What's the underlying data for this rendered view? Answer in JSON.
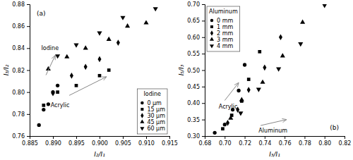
{
  "chart_data": [
    {
      "type": "scatter",
      "panel_label": "(a)",
      "x_label": "I₂/I₁",
      "y_label": "I₃/I₂",
      "xlim": [
        0.885,
        0.915
      ],
      "ylim": [
        0.76,
        0.88
      ],
      "xticks": [
        0.885,
        {
          "value": 0.89,
          "label": "0.890"
        },
        0.895,
        {
          "value": 0.9,
          "label": "0.900"
        },
        0.905,
        {
          "value": 0.91,
          "label": "0.910"
        },
        0.915
      ],
      "yticks": [
        0.76,
        0.78,
        {
          "value": 0.8,
          "label": "0.80"
        },
        0.82,
        0.84,
        0.86,
        0.88
      ],
      "grid": false,
      "legend": "lower right",
      "legend_title": "Iodine",
      "series": [
        {
          "name": "0 μm",
          "color": "black",
          "marker": "circle",
          "x": [
            0.887,
            0.888,
            0.889,
            0.89,
            0.891
          ],
          "values": [
            0.77,
            0.784,
            0.789,
            0.8,
            0.806
          ]
        },
        {
          "name": "15 μm",
          "color": "black",
          "marker": "square",
          "x": [
            0.888,
            0.891,
            0.895,
            0.9,
            0.902
          ],
          "values": [
            0.788,
            0.8,
            0.806,
            0.815,
            0.82
          ]
        },
        {
          "name": "30 μm",
          "color": "black",
          "marker": "diamond",
          "x": [
            0.89,
            0.894,
            0.897,
            0.9,
            0.904
          ],
          "values": [
            0.799,
            0.815,
            0.823,
            0.83,
            0.845
          ]
        },
        {
          "name": "45 μm",
          "color": "black",
          "marker": "triangle-up",
          "x": [
            0.889,
            0.893,
            0.897,
            0.902,
            0.906,
            0.91
          ],
          "values": [
            0.821,
            0.832,
            0.84,
            0.848,
            0.86,
            0.863
          ]
        },
        {
          "name": "60 μm",
          "color": "black",
          "marker": "triangle-down",
          "x": [
            0.891,
            0.895,
            0.9,
            0.905,
            0.912
          ],
          "values": [
            0.833,
            0.843,
            0.854,
            0.868,
            0.876
          ]
        }
      ],
      "annotations": [
        {
          "text": "Iodine",
          "x": 0.8875,
          "y": 0.838,
          "arrow_from": [
            0.8885,
            0.8155
          ],
          "arrow_to": [
            0.8905,
            0.8335
          ],
          "color": "#888888"
        },
        {
          "text": "Acrylic",
          "x": 0.8895,
          "y": 0.79,
          "arrow_from": [
            0.8935,
            0.797
          ],
          "arrow_to": [
            0.9015,
            0.814
          ],
          "color": "#888888"
        }
      ]
    },
    {
      "type": "scatter",
      "panel_label": "(b)",
      "x_label": "I₃/I₁",
      "y_label": "I₅/I₃",
      "xlim": [
        0.68,
        0.82
      ],
      "ylim": [
        0.3,
        0.7
      ],
      "xticks": [
        0.68,
        {
          "value": 0.7,
          "label": "0.70"
        },
        0.72,
        0.74,
        0.76,
        0.78,
        {
          "value": 0.8,
          "label": "0.80"
        },
        0.82
      ],
      "yticks": [
        {
          "value": 0.3,
          "label": "0.30"
        },
        0.35,
        {
          "value": 0.4,
          "label": "0.40"
        },
        0.45,
        {
          "value": 0.5,
          "label": "0.50"
        },
        0.55,
        {
          "value": 0.6,
          "label": "0.60"
        },
        0.65,
        {
          "value": 0.7,
          "label": "0.70"
        }
      ],
      "grid": false,
      "legend": "upper left",
      "legend_title": "Aluminum",
      "series": [
        {
          "name": "0 mm",
          "color": "black",
          "marker": "circle",
          "x": [
            0.69,
            0.7,
            0.708,
            0.714,
            0.72
          ],
          "values": [
            0.31,
            0.335,
            0.38,
            0.438,
            0.516
          ]
        },
        {
          "name": "1 mm",
          "color": "black",
          "marker": "square",
          "x": [
            0.698,
            0.707,
            0.717,
            0.724,
            0.735
          ],
          "values": [
            0.322,
            0.363,
            0.406,
            0.472,
            0.556
          ]
        },
        {
          "name": "2 mm",
          "color": "black",
          "marker": "diamond",
          "x": [
            0.703,
            0.713,
            0.724,
            0.74,
            0.756
          ],
          "values": [
            0.34,
            0.38,
            0.44,
            0.508,
            0.6
          ]
        },
        {
          "name": "3 mm",
          "color": "black",
          "marker": "triangle-up",
          "x": [
            0.706,
            0.717,
            0.738,
            0.758,
            0.778
          ],
          "values": [
            0.354,
            0.41,
            0.463,
            0.543,
            0.645
          ]
        },
        {
          "name": "4 mm",
          "color": "black",
          "marker": "triangle-down",
          "x": [
            0.716,
            0.734,
            0.754,
            0.776,
            0.8
          ],
          "values": [
            0.37,
            0.442,
            0.504,
            0.58,
            0.697
          ]
        }
      ],
      "annotations": [
        {
          "text": "Acrylic",
          "x": 0.694,
          "y": 0.395,
          "arrow_from": [
            0.7,
            0.408
          ],
          "arrow_to": [
            0.714,
            0.462
          ],
          "color": "#888888"
        },
        {
          "text": "Aluminum",
          "x": 0.734,
          "y": 0.322,
          "arrow_from": [
            0.736,
            0.332
          ],
          "arrow_to": [
            0.762,
            0.35
          ],
          "color": "#888888"
        }
      ]
    }
  ]
}
